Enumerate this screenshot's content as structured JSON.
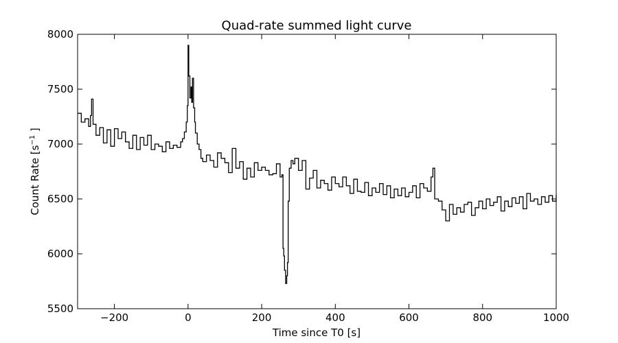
{
  "chart_data": {
    "type": "line",
    "title": "Quad-rate summed light curve",
    "xlabel": "Time since T0 [s]",
    "ylabel": "Count Rate [s",
    "ylabel_exponent": "−1",
    "ylabel_suffix": " ]",
    "xlim": [
      -300,
      1000
    ],
    "ylim": [
      5500,
      8000
    ],
    "xticks": [
      -200,
      0,
      200,
      400,
      600,
      800,
      1000
    ],
    "xtick_labels": [
      "−200",
      "0",
      "200",
      "400",
      "600",
      "800",
      "1000"
    ],
    "yticks": [
      5500,
      6000,
      6500,
      7000,
      7500,
      8000
    ],
    "ytick_labels": [
      "5500",
      "6000",
      "6500",
      "7000",
      "7500",
      "8000"
    ],
    "grid": false,
    "line_color": "#000000",
    "series": [
      {
        "x": [
          -300,
          -290,
          -280,
          -270,
          -265,
          -262,
          -258,
          -250,
          -240,
          -230,
          -220,
          -210,
          -200,
          -190,
          -180,
          -170,
          -160,
          -150,
          -140,
          -130,
          -120,
          -110,
          -100,
          -90,
          -80,
          -70,
          -60,
          -50,
          -40,
          -30,
          -20,
          -15,
          -10,
          -5,
          -2,
          0,
          2,
          5,
          8,
          10,
          12,
          15,
          18,
          20,
          25,
          30,
          35,
          40,
          50,
          60,
          70,
          80,
          90,
          100,
          110,
          120,
          130,
          140,
          150,
          160,
          170,
          180,
          190,
          200,
          210,
          220,
          230,
          240,
          250,
          255,
          258,
          260,
          262,
          265,
          268,
          270,
          272,
          275,
          280,
          285,
          290,
          300,
          310,
          320,
          330,
          340,
          350,
          360,
          370,
          380,
          390,
          400,
          410,
          420,
          430,
          440,
          450,
          460,
          470,
          480,
          490,
          500,
          510,
          520,
          530,
          540,
          550,
          560,
          570,
          580,
          590,
          600,
          610,
          620,
          630,
          640,
          650,
          660,
          665,
          670,
          680,
          690,
          700,
          710,
          720,
          730,
          740,
          750,
          760,
          770,
          780,
          790,
          800,
          810,
          820,
          830,
          840,
          850,
          860,
          870,
          880,
          890,
          900,
          910,
          920,
          930,
          940,
          950,
          960,
          970,
          980,
          990,
          1000
        ],
        "y": [
          7280,
          7200,
          7230,
          7160,
          7260,
          7410,
          7180,
          7080,
          7150,
          7010,
          7130,
          6980,
          7140,
          7050,
          7110,
          7020,
          6960,
          7080,
          6950,
          7060,
          6990,
          7080,
          6950,
          7000,
          6980,
          6930,
          7020,
          6960,
          6990,
          6970,
          7020,
          7050,
          7110,
          7200,
          7350,
          7900,
          7620,
          7420,
          7520,
          7380,
          7600,
          7330,
          7200,
          7100,
          7000,
          6950,
          6870,
          6840,
          6900,
          6850,
          6790,
          6920,
          6870,
          6830,
          6740,
          6960,
          6780,
          6840,
          6680,
          6780,
          6700,
          6830,
          6760,
          6790,
          6760,
          6720,
          6730,
          6820,
          6700,
          6720,
          6050,
          5980,
          5850,
          5730,
          5800,
          5920,
          6480,
          6780,
          6850,
          6820,
          6870,
          6760,
          6850,
          6590,
          6690,
          6760,
          6600,
          6670,
          6640,
          6580,
          6700,
          6640,
          6610,
          6700,
          6620,
          6550,
          6680,
          6570,
          6560,
          6650,
          6530,
          6600,
          6560,
          6640,
          6540,
          6620,
          6510,
          6590,
          6530,
          6600,
          6520,
          6560,
          6620,
          6510,
          6640,
          6600,
          6570,
          6700,
          6780,
          6500,
          6480,
          6400,
          6300,
          6450,
          6360,
          6420,
          6380,
          6450,
          6470,
          6350,
          6420,
          6480,
          6410,
          6500,
          6440,
          6470,
          6520,
          6390,
          6480,
          6430,
          6510,
          6460,
          6520,
          6410,
          6550,
          6480,
          6500,
          6450,
          6520,
          6470,
          6530,
          6480,
          6540
        ]
      }
    ]
  }
}
